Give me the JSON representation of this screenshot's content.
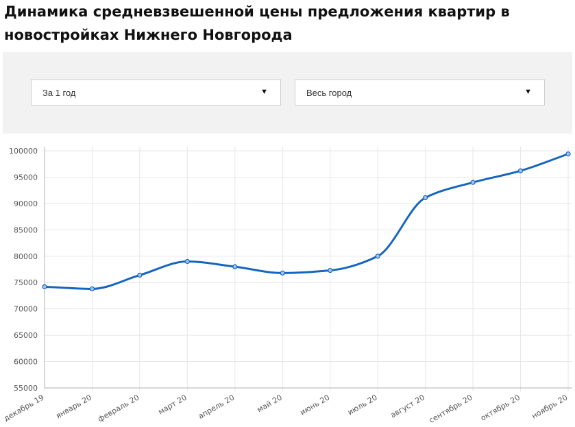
{
  "page": {
    "title": "Динамика средневзвешенной цены предложения квартир в новостройках Нижнего Новгорода"
  },
  "filters": {
    "period": {
      "value": "За 1 год",
      "icon": "chevron-down-icon"
    },
    "area": {
      "value": "Весь город",
      "icon": "chevron-down-icon"
    }
  },
  "colors": {
    "line": "#1565c0",
    "grid": "#e6e6e6",
    "panel": "#f2f2f2"
  },
  "chart_data": {
    "type": "line",
    "categories": [
      "декабрь 19",
      "январь 20",
      "февраль 20",
      "март 20",
      "апрель 20",
      "май 20",
      "июнь 20",
      "июль 20",
      "август 20",
      "сентябрь 20",
      "октябрь 20",
      "ноябрь 20"
    ],
    "series": [
      {
        "values": [
          74200,
          73800,
          76400,
          79000,
          78000,
          76800,
          77300,
          80000,
          91100,
          94000,
          96200,
          99400
        ]
      }
    ],
    "yticks": [
      55000,
      60000,
      65000,
      70000,
      75000,
      80000,
      85000,
      90000,
      95000,
      100000
    ],
    "ylim": [
      55000,
      100000
    ],
    "xlabel": "",
    "ylabel": "",
    "grid": true,
    "legend": "none",
    "smooth": true,
    "markers": "circle"
  }
}
